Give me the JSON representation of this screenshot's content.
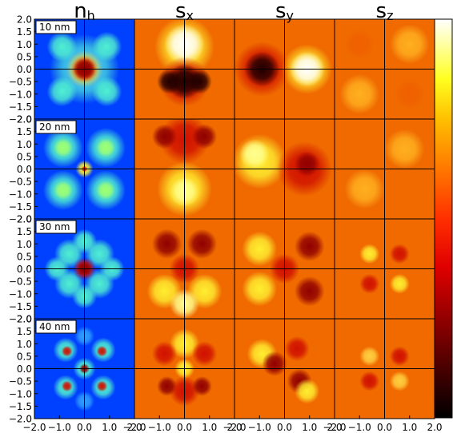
{
  "chart_data": {
    "type": "heatmap-grid",
    "columns": [
      {
        "symbol": "n",
        "sub": "h"
      },
      {
        "symbol": "s",
        "sub": "x"
      },
      {
        "symbol": "s",
        "sub": "y"
      },
      {
        "symbol": "s",
        "sub": "z"
      }
    ],
    "rows": [
      "10 nm",
      "20 nm",
      "30 nm",
      "40 nm"
    ],
    "xlim": [
      -2,
      2
    ],
    "ylim": [
      -2,
      2
    ],
    "xticks": [
      {
        "value": -2,
        "label": "−2.0"
      },
      {
        "value": -1,
        "label": "−1.0"
      },
      {
        "value": 0,
        "label": "0.0"
      },
      {
        "value": 1,
        "label": "1.0"
      },
      {
        "value": 2,
        "label": "2.0"
      }
    ],
    "yticks": [
      {
        "value": 2,
        "label": "2.0"
      },
      {
        "value": 1.5,
        "label": "1.5"
      },
      {
        "value": 1,
        "label": "1.0"
      },
      {
        "value": 0.5,
        "label": "0.5"
      },
      {
        "value": 0,
        "label": "0.0"
      },
      {
        "value": -0.5,
        "label": "−0.5"
      },
      {
        "value": -1,
        "label": "−1.0"
      },
      {
        "value": -1.5,
        "label": "−1.5"
      },
      {
        "value": -2,
        "label": "−2.0"
      }
    ]
  }
}
